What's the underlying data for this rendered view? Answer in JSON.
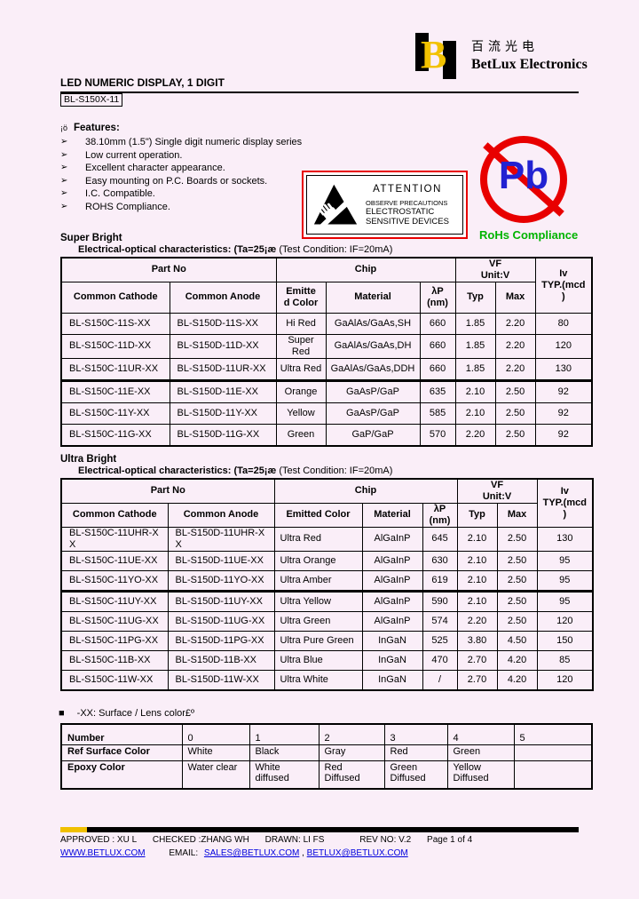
{
  "logo": {
    "monogram": "B",
    "chinese": "百流光电",
    "company": "BetLux Electronics"
  },
  "header": {
    "title": "LED NUMERIC DISPLAY, 1 DIGIT",
    "part_number": "BL-S150X-11"
  },
  "features": {
    "prefix": "¡ö",
    "heading": "Features:",
    "arrow": "➢",
    "items": [
      "38.10mm (1.5\") Single digit numeric display series",
      "Low current operation.",
      "Excellent character appearance.",
      "Easy mounting on P.C. Boards or sockets.",
      "I.C. Compatible.",
      "ROHS Compliance."
    ]
  },
  "attention": {
    "title": "ATTENTION",
    "line_small": "OBSERVE PRECAUTIONS",
    "line2": "ELECTROSTATIC",
    "line3": "SENSITIVE DEVICES"
  },
  "rohs": {
    "pb": "Pb",
    "label": "RoHs Compliance"
  },
  "super_bright": {
    "section_title": "Super Bright",
    "subtitle_bold": "Electrical-optical characteristics: (Ta=25¡æ",
    "subtitle_rest": " (Test Condition: IF=20mA)",
    "header": {
      "part_no": "Part No",
      "chip": "Chip",
      "vf": "VF\nUnit:V",
      "iv": "Iv\nTYP.(mcd\n)",
      "common_cathode": "Common Cathode",
      "common_anode": "Common Anode",
      "emitted_color": "Emitte\nd Color",
      "material": "Material",
      "lambda": "λP\n(nm)",
      "typ": "Typ",
      "max": "Max"
    },
    "rows": [
      [
        "BL-S150C-11S-XX",
        "BL-S150D-11S-XX",
        "Hi Red",
        "GaAlAs/GaAs,SH",
        "660",
        "1.85",
        "2.20",
        "80"
      ],
      [
        "BL-S150C-11D-XX",
        "BL-S150D-11D-XX",
        "Super Red",
        "GaAlAs/GaAs,DH",
        "660",
        "1.85",
        "2.20",
        "120"
      ],
      [
        "BL-S150C-11UR-XX",
        "BL-S150D-11UR-XX",
        "Ultra Red",
        "GaAlAs/GaAs,DDH",
        "660",
        "1.85",
        "2.20",
        "130"
      ],
      [
        "BL-S150C-11E-XX",
        "BL-S150D-11E-XX",
        "Orange",
        "GaAsP/GaP",
        "635",
        "2.10",
        "2.50",
        "92"
      ],
      [
        "BL-S150C-11Y-XX",
        "BL-S150D-11Y-XX",
        "Yellow",
        "GaAsP/GaP",
        "585",
        "2.10",
        "2.50",
        "92"
      ],
      [
        "BL-S150C-11G-XX",
        "BL-S150D-11G-XX",
        "Green",
        "GaP/GaP",
        "570",
        "2.20",
        "2.50",
        "92"
      ]
    ]
  },
  "ultra_bright": {
    "section_title": "Ultra Bright",
    "subtitle_bold": "Electrical-optical characteristics: (Ta=25¡æ",
    "subtitle_rest": "  (Test Condition: IF=20mA)",
    "header": {
      "part_no": "Part No",
      "chip": "Chip",
      "vf": "VF\nUnit:V",
      "iv": "Iv\nTYP.(mcd\n)",
      "common_cathode": "Common Cathode",
      "common_anode": "Common Anode",
      "emitted_color": "Emitted Color",
      "material": "Material",
      "lambda": "λP\n(nm)",
      "typ": "Typ",
      "max": "Max"
    },
    "rows": [
      [
        "BL-S150C-11UHR-X\nX",
        "BL-S150D-11UHR-X\nX",
        "Ultra Red",
        "AlGaInP",
        "645",
        "2.10",
        "2.50",
        "130"
      ],
      [
        "BL-S150C-11UE-XX",
        "BL-S150D-11UE-XX",
        "Ultra Orange",
        "AlGaInP",
        "630",
        "2.10",
        "2.50",
        "95"
      ],
      [
        "BL-S150C-11YO-XX",
        "BL-S150D-11YO-XX",
        "Ultra Amber",
        "AlGaInP",
        "619",
        "2.10",
        "2.50",
        "95"
      ],
      [
        "BL-S150C-11UY-XX",
        "BL-S150D-11UY-XX",
        "Ultra Yellow",
        "AlGaInP",
        "590",
        "2.10",
        "2.50",
        "95"
      ],
      [
        "BL-S150C-11UG-XX",
        "BL-S150D-11UG-XX",
        "Ultra Green",
        "AlGaInP",
        "574",
        "2.20",
        "2.50",
        "120"
      ],
      [
        "BL-S150C-11PG-XX",
        "BL-S150D-11PG-XX",
        "Ultra Pure Green",
        "InGaN",
        "525",
        "3.80",
        "4.50",
        "150"
      ],
      [
        "BL-S150C-11B-XX",
        "BL-S150D-11B-XX",
        "Ultra Blue",
        "InGaN",
        "470",
        "2.70",
        "4.20",
        "85"
      ],
      [
        "BL-S150C-11W-XX",
        "BL-S150D-11W-XX",
        "Ultra White",
        "InGaN",
        "/",
        "2.70",
        "4.20",
        "120"
      ]
    ]
  },
  "lens": {
    "bullet": "■",
    "heading": "-XX: Surface / Lens color£º",
    "rows": [
      [
        "Number",
        "0",
        "1",
        "2",
        "3",
        "4",
        "5"
      ],
      [
        "Ref Surface Color",
        "White",
        "Black",
        "Gray",
        "Red",
        "Green",
        ""
      ],
      [
        "Epoxy Color",
        "Water clear",
        "White diffused",
        "Red Diffused",
        "Green Diffused",
        "Yellow Diffused",
        ""
      ]
    ]
  },
  "footer": {
    "approved": "APPROVED : XU L",
    "checked": "CHECKED :ZHANG WH",
    "drawn": "DRAWN: LI FS",
    "rev": "REV NO: V.2",
    "page": "Page 1 of 4",
    "website": "WWW.BETLUX.COM",
    "email_label": "EMAIL:",
    "email1": "SALES@BETLUX.COM",
    "separator": ",",
    "email2": "BETLUX@BETLUX.COM"
  },
  "colors": {
    "background": "#faeef8",
    "accent_yellow": "#f2c200",
    "alert_red": "#e80000",
    "pb_blue": "#2222d2",
    "rohs_green": "#00b400",
    "link_blue": "#0000dd"
  }
}
